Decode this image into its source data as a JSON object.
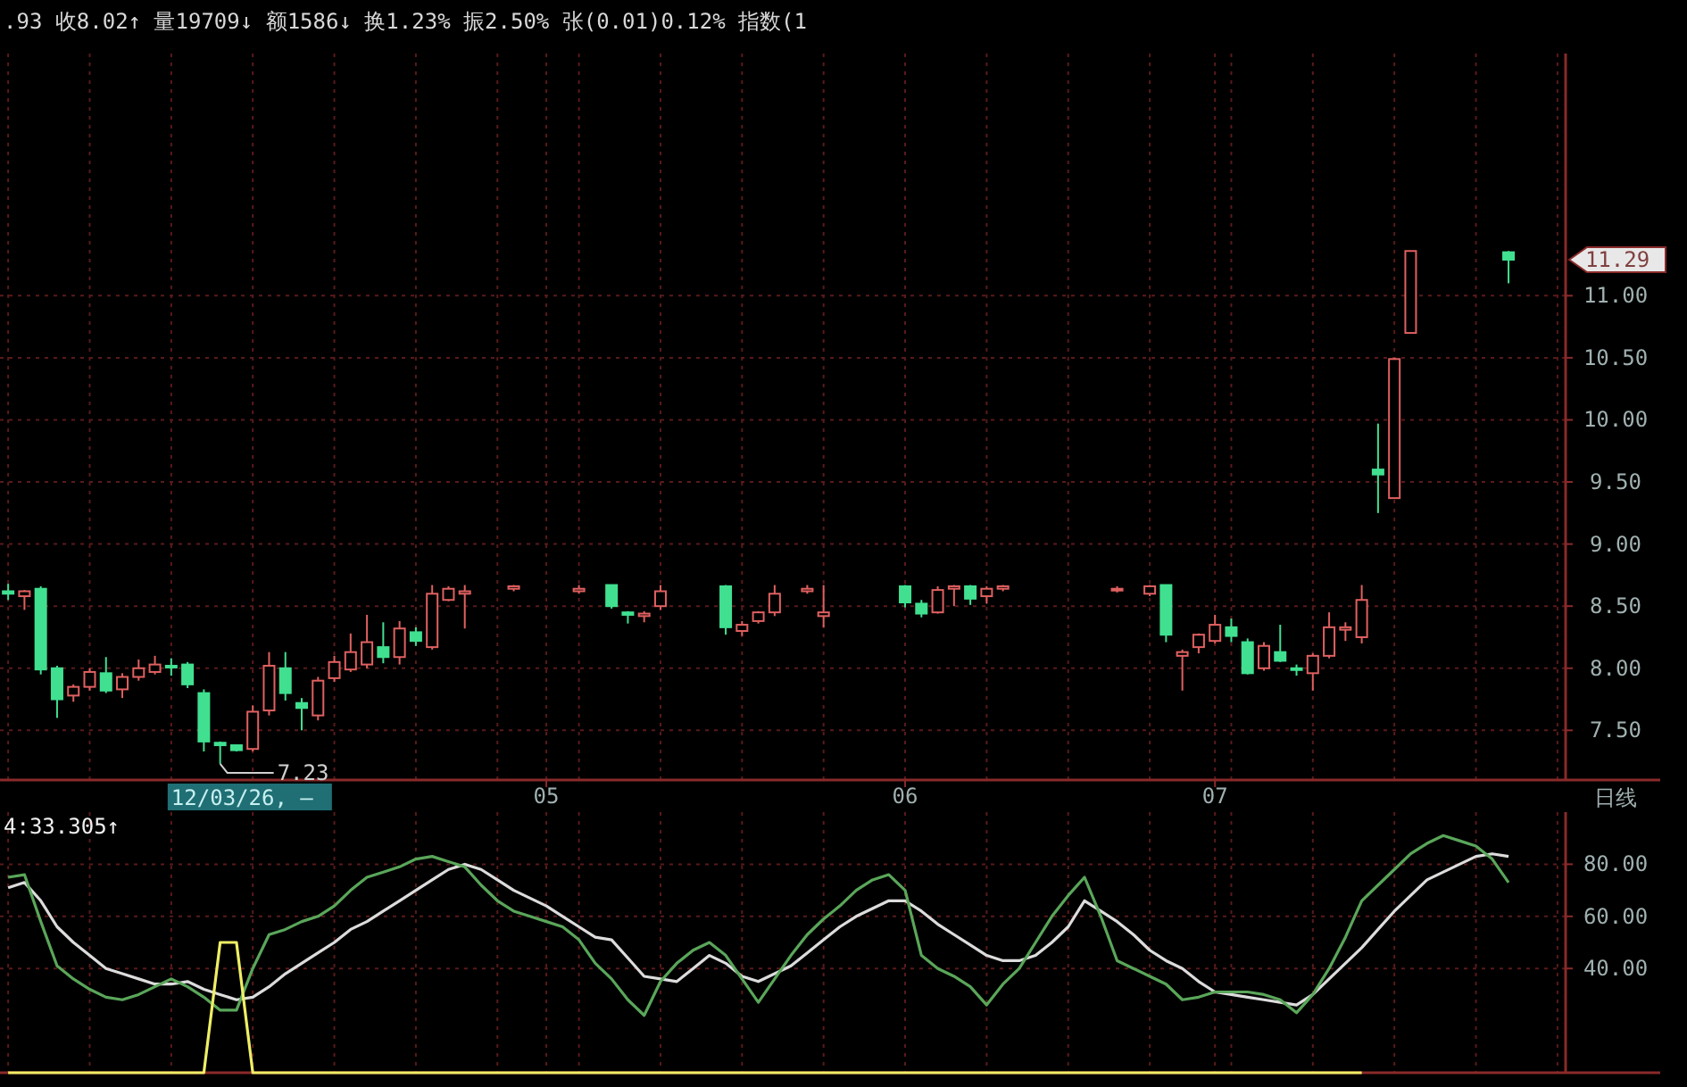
{
  "chart_data": [
    {
      "type": "candlestick",
      "title": ".93 收8.02↑ 量19709↓ 额1586↓ 换1.23% 振2.50% 张(0.01)0.12% 指数(1",
      "categories": [
        null,
        null,
        null,
        null,
        null,
        null,
        null,
        null,
        null,
        null,
        null,
        null,
        null,
        null,
        null,
        null,
        null,
        null,
        null,
        null,
        null,
        null,
        null,
        null,
        null,
        null,
        null,
        null,
        null,
        null,
        null,
        null,
        null,
        "05",
        null,
        null,
        null,
        null,
        null,
        null,
        null,
        null,
        null,
        null,
        null,
        null,
        null,
        null,
        null,
        null,
        null,
        null,
        null,
        null,
        null,
        "06",
        null,
        null,
        null,
        null,
        null,
        null,
        null,
        null,
        null,
        null,
        null,
        null,
        null,
        null,
        null,
        null,
        null,
        null,
        "07",
        null,
        null,
        null,
        null,
        null,
        null,
        null,
        null,
        null,
        null,
        null,
        null,
        null,
        null,
        null,
        null,
        null,
        null,
        null,
        null,
        null
      ],
      "ohlc": [
        [
          8.62,
          8.68,
          8.55,
          8.6
        ],
        [
          8.58,
          8.63,
          8.47,
          8.62
        ],
        [
          8.64,
          8.66,
          7.95,
          7.99
        ],
        [
          8.0,
          8.02,
          7.6,
          7.75
        ],
        [
          7.78,
          7.87,
          7.73,
          7.85
        ],
        [
          7.85,
          8.0,
          7.82,
          7.97
        ],
        [
          7.96,
          8.09,
          7.8,
          7.82
        ],
        [
          7.83,
          7.96,
          7.76,
          7.93
        ],
        [
          7.93,
          8.07,
          7.9,
          8.0
        ],
        [
          7.97,
          8.1,
          7.95,
          8.03
        ],
        [
          8.02,
          8.08,
          7.94,
          8.01
        ],
        [
          8.03,
          8.05,
          7.84,
          7.87
        ],
        [
          7.8,
          7.83,
          7.33,
          7.41
        ],
        [
          7.4,
          7.41,
          7.23,
          7.38
        ],
        [
          7.38,
          7.38,
          7.33,
          7.34
        ],
        [
          7.35,
          7.7,
          7.33,
          7.65
        ],
        [
          7.66,
          8.13,
          7.62,
          8.02
        ],
        [
          8.0,
          8.13,
          7.74,
          7.8
        ],
        [
          7.72,
          7.76,
          7.5,
          7.68
        ],
        [
          7.62,
          7.93,
          7.58,
          7.9
        ],
        [
          7.92,
          8.1,
          7.89,
          8.05
        ],
        [
          7.99,
          8.28,
          7.97,
          8.13
        ],
        [
          8.03,
          8.43,
          8.0,
          8.21
        ],
        [
          8.17,
          8.37,
          8.04,
          8.09
        ],
        [
          8.09,
          8.38,
          8.03,
          8.32
        ],
        [
          8.29,
          8.33,
          8.18,
          8.22
        ],
        [
          8.17,
          8.67,
          8.15,
          8.6
        ],
        [
          8.55,
          8.66,
          8.54,
          8.64
        ],
        [
          8.6,
          8.67,
          8.32,
          8.62
        ],
        null,
        null,
        [
          8.64,
          8.67,
          8.62,
          8.66
        ],
        null,
        null,
        null,
        [
          8.62,
          8.67,
          8.6,
          8.64
        ],
        null,
        [
          8.67,
          8.67,
          8.48,
          8.5
        ],
        [
          8.45,
          8.46,
          8.36,
          8.43
        ],
        [
          8.42,
          8.46,
          8.37,
          8.44
        ],
        [
          8.5,
          8.67,
          8.47,
          8.62
        ],
        null,
        null,
        null,
        [
          8.66,
          8.67,
          8.27,
          8.33
        ],
        [
          8.3,
          8.38,
          8.26,
          8.35
        ],
        [
          8.38,
          8.46,
          8.36,
          8.45
        ],
        [
          8.45,
          8.67,
          8.42,
          8.6
        ],
        null,
        [
          8.62,
          8.67,
          8.6,
          8.64
        ],
        [
          8.42,
          8.67,
          8.33,
          8.45
        ],
        null,
        null,
        null,
        null,
        [
          8.66,
          8.67,
          8.49,
          8.53
        ],
        [
          8.52,
          8.55,
          8.41,
          8.44
        ],
        [
          8.45,
          8.66,
          8.44,
          8.63
        ],
        [
          8.64,
          8.67,
          8.5,
          8.66
        ],
        [
          8.66,
          8.67,
          8.51,
          8.56
        ],
        [
          8.58,
          8.66,
          8.52,
          8.64
        ],
        [
          8.64,
          8.67,
          8.62,
          8.66
        ],
        null,
        null,
        null,
        null,
        null,
        null,
        [
          8.63,
          8.66,
          8.61,
          8.64
        ],
        null,
        [
          8.6,
          8.67,
          8.58,
          8.66
        ],
        [
          8.67,
          8.67,
          8.21,
          8.27
        ],
        [
          8.1,
          8.15,
          7.82,
          8.13
        ],
        [
          8.17,
          8.28,
          8.12,
          8.27
        ],
        [
          8.22,
          8.43,
          8.2,
          8.35
        ],
        [
          8.33,
          8.4,
          8.21,
          8.26
        ],
        [
          8.21,
          8.24,
          7.95,
          7.96
        ],
        [
          8.0,
          8.21,
          7.98,
          8.18
        ],
        [
          8.13,
          8.35,
          8.05,
          8.06
        ],
        [
          8.0,
          8.03,
          7.94,
          7.99
        ],
        [
          7.96,
          8.12,
          7.82,
          8.1
        ],
        [
          8.1,
          8.45,
          8.08,
          8.33
        ],
        [
          8.31,
          8.37,
          8.22,
          8.33
        ],
        [
          8.25,
          8.67,
          8.2,
          8.55
        ],
        [
          9.6,
          9.97,
          9.25,
          9.56
        ],
        [
          9.37,
          10.5,
          9.37,
          10.49
        ],
        [
          10.7,
          11.36,
          10.7,
          11.36
        ],
        null,
        null,
        null,
        null,
        null,
        [
          11.35,
          11.36,
          11.1,
          11.29
        ],
        null,
        null,
        null
      ],
      "ylim": [
        7.1,
        12.95
      ],
      "yticks": [
        {
          "value": 7.5,
          "label": "7.50"
        },
        {
          "value": 8,
          "label": "8.00"
        },
        {
          "value": 8.5,
          "label": "8.50"
        },
        {
          "value": 9,
          "label": "9.00"
        },
        {
          "value": 9.5,
          "label": "9.50"
        },
        {
          "value": 10,
          "label": "10.00"
        },
        {
          "value": 10.5,
          "label": "10.50"
        },
        {
          "value": 11,
          "label": "11.00"
        }
      ],
      "grid": true,
      "annotations": [
        "12/03/26, —",
        "7.23",
        "11.29",
        "日线"
      ]
    },
    {
      "type": "line",
      "title": "4:33.305↑",
      "categories": [
        null,
        null,
        null,
        null,
        null,
        null,
        null,
        null,
        null,
        null,
        null,
        null,
        null,
        null,
        null,
        null,
        null,
        null,
        null,
        null,
        null,
        null,
        null,
        null,
        null,
        null,
        null,
        null,
        null,
        null,
        null,
        null,
        null,
        "05",
        null,
        null,
        null,
        null,
        null,
        null,
        null,
        null,
        null,
        null,
        null,
        null,
        null,
        null,
        null,
        null,
        null,
        null,
        null,
        null,
        null,
        "06",
        null,
        null,
        null,
        null,
        null,
        null,
        null,
        null,
        null,
        null,
        null,
        null,
        null,
        null,
        null,
        null,
        null,
        null,
        "07",
        null,
        null,
        null,
        null,
        null,
        null,
        null,
        null,
        null,
        null,
        null,
        null,
        null,
        null,
        null,
        null,
        null,
        null,
        null,
        null,
        null
      ],
      "tick_labels": "y",
      "ylim": [
        0,
        100
      ],
      "yticks": [
        {
          "value": 40,
          "label": "40.00"
        },
        {
          "value": 60,
          "label": "60.00"
        },
        {
          "value": 80,
          "label": "80.00"
        }
      ],
      "grid": true,
      "series": [
        {
          "color": "#dcdcdc",
          "values": [
            71,
            73,
            66,
            56,
            50,
            45,
            40,
            38,
            36,
            34,
            34,
            35,
            32,
            30,
            28,
            29,
            33,
            38,
            42,
            46,
            50,
            55,
            58,
            62,
            66,
            70,
            74,
            78,
            80,
            78,
            74,
            70,
            67,
            64,
            60,
            56,
            52,
            51,
            44,
            37,
            36,
            35,
            40,
            45,
            42,
            37,
            35,
            38,
            41,
            46,
            51,
            56,
            60,
            63,
            66,
            66,
            62,
            57,
            53,
            49,
            45,
            43,
            43,
            45,
            50,
            56,
            66,
            62,
            58,
            53,
            47,
            43,
            40,
            35,
            31,
            30,
            29,
            28,
            27,
            26,
            30,
            36,
            42,
            48,
            55,
            62,
            68,
            74,
            77,
            80,
            83,
            84,
            83,
            null,
            null,
            null
          ]
        },
        {
          "color": "#5aa65a",
          "values": [
            75,
            76,
            58,
            41,
            36,
            32,
            29,
            28,
            30,
            33,
            36,
            33,
            29,
            24,
            24,
            40,
            53,
            55,
            58,
            60,
            64,
            70,
            75,
            77,
            79,
            82,
            83,
            81,
            79,
            72,
            66,
            62,
            60,
            58,
            56,
            51,
            42,
            36,
            28,
            22,
            35,
            42,
            47,
            50,
            45,
            36,
            27,
            36,
            45,
            53,
            59,
            64,
            70,
            74,
            76,
            70,
            45,
            40,
            37,
            33,
            26,
            34,
            40,
            50,
            60,
            68,
            75,
            60,
            43,
            40,
            37,
            34,
            28,
            29,
            31,
            31,
            31,
            30,
            28,
            23,
            30,
            40,
            52,
            66,
            72,
            78,
            84,
            88,
            91,
            89,
            87,
            82,
            73,
            null,
            null,
            null
          ]
        },
        {
          "color": "#eeee66",
          "values": [
            0,
            0,
            0,
            0,
            0,
            0,
            0,
            0,
            0,
            0,
            0,
            0,
            0,
            50,
            50,
            0,
            0,
            0,
            0,
            0,
            0,
            0,
            0,
            0,
            0,
            0,
            0,
            0,
            0,
            0,
            0,
            0,
            0,
            0,
            0,
            0,
            0,
            0,
            0,
            0,
            0,
            0,
            0,
            0,
            0,
            0,
            0,
            0,
            0,
            0,
            0,
            0,
            0,
            0,
            0,
            0,
            0,
            0,
            0,
            0,
            0,
            0,
            0,
            0,
            0,
            0,
            0,
            0,
            0,
            0,
            0,
            0,
            0,
            0,
            0,
            0,
            0,
            0,
            0,
            0,
            0,
            0,
            0,
            0,
            null,
            null,
            null,
            null,
            null,
            null,
            null,
            null,
            null,
            null,
            null,
            null
          ]
        }
      ]
    }
  ]
}
